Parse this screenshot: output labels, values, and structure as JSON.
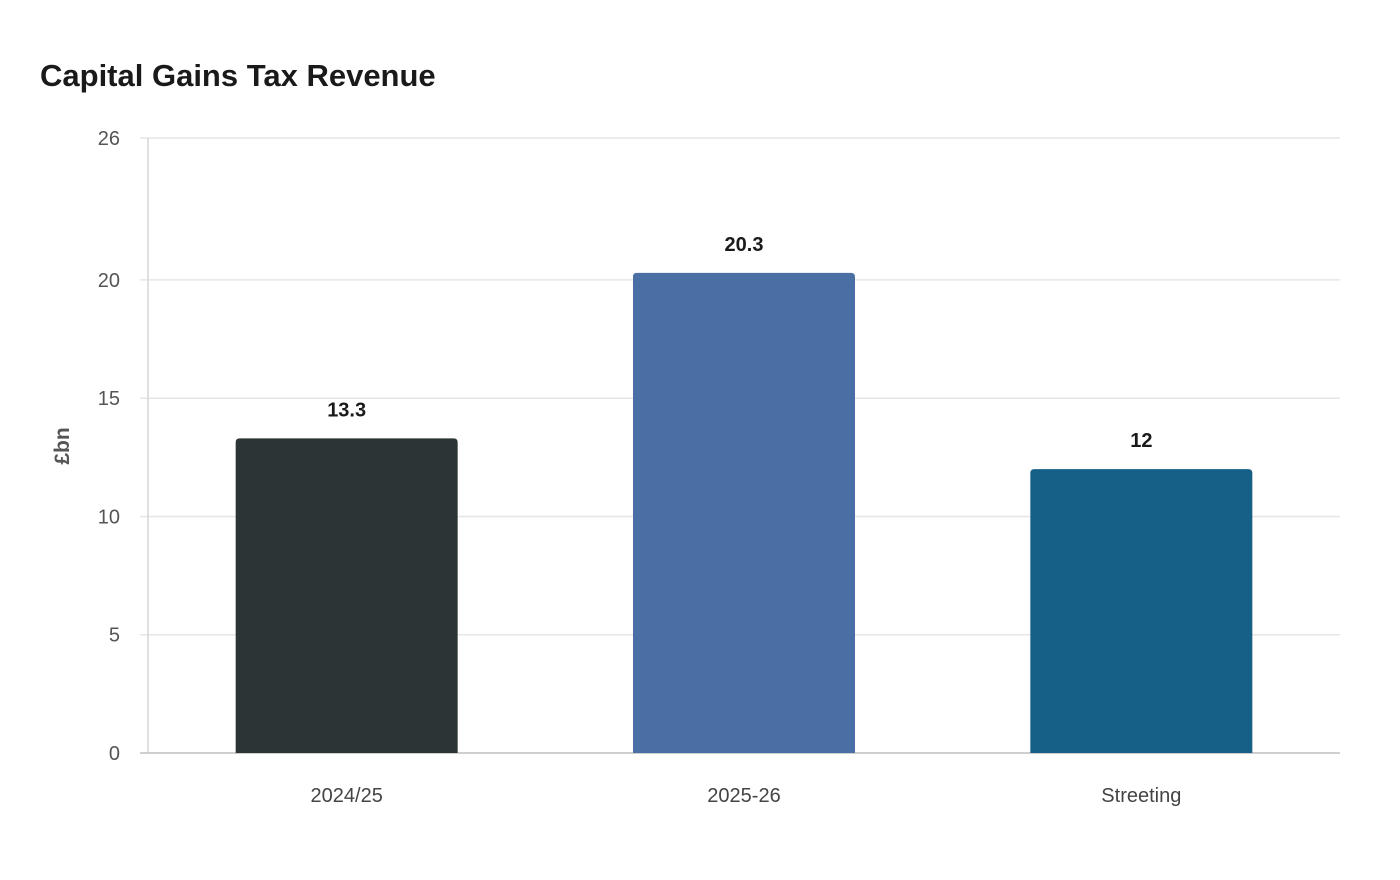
{
  "chart_data": {
    "type": "bar",
    "title": "Capital Gains Tax Revenue",
    "xlabel": "",
    "ylabel": "£bn",
    "categories": [
      "2024/25",
      "2025-26",
      "Streeting"
    ],
    "values": [
      13.3,
      20.3,
      12
    ],
    "value_labels": [
      "13.3",
      "20.3",
      "12"
    ],
    "colors": [
      "#2d3436",
      "#4a6fa5",
      "#166088"
    ],
    "y_ticks": [
      0,
      5,
      10,
      15,
      20,
      26
    ],
    "ylim": [
      0,
      26
    ],
    "grid": true,
    "legend": "none"
  }
}
